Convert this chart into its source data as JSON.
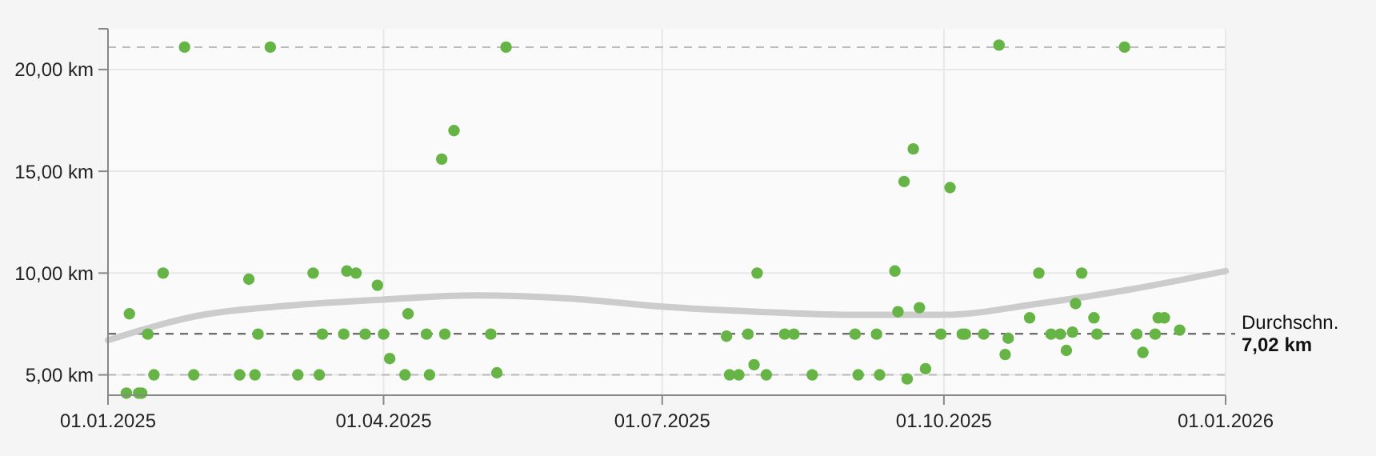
{
  "chart_data": {
    "type": "scatter",
    "ylim": [
      4,
      22
    ],
    "xlim": [
      "2025-01-01",
      "2026-01-01"
    ],
    "yticks": [
      {
        "value": 5,
        "label": "5,00 km"
      },
      {
        "value": 10,
        "label": "10,00 km"
      },
      {
        "value": 15,
        "label": "15,00 km"
      },
      {
        "value": 20,
        "label": "20,00 km"
      }
    ],
    "xticks": [
      {
        "value": "2025-01-01",
        "label": "01.01.2025"
      },
      {
        "value": "2025-04-01",
        "label": "01.04.2025"
      },
      {
        "value": "2025-07-01",
        "label": "01.07.2025"
      },
      {
        "value": "2025-10-01",
        "label": "01.10.2025"
      },
      {
        "value": "2026-01-01",
        "label": "01.01.2026"
      }
    ],
    "grid": true,
    "ref_lines": [
      {
        "axis": "y",
        "value": 7.02,
        "label": "Durchschn.\n7,02 km",
        "color": "#555555",
        "line_style": "dashed"
      },
      {
        "axis": "y",
        "value": 21.1,
        "color": "#bbbbbb",
        "line_style": "dashed"
      },
      {
        "axis": "y",
        "value": 5.0,
        "color": "#bbbbbb",
        "line_style": "dashed"
      }
    ],
    "series": [
      {
        "type": "line",
        "color": "#cccccc",
        "x": [
          "2025-01-01",
          "2025-02-01",
          "2025-03-01",
          "2025-04-01",
          "2025-05-01",
          "2025-06-01",
          "2025-07-01",
          "2025-08-01",
          "2025-09-01",
          "2025-10-01",
          "2025-11-01",
          "2025-12-01",
          "2026-01-01"
        ],
        "values": [
          6.7,
          7.95,
          8.4,
          8.7,
          8.9,
          8.75,
          8.35,
          8.1,
          7.95,
          7.95,
          8.5,
          9.2,
          10.1
        ]
      },
      {
        "marker": "circle",
        "color": "#67b446",
        "x": [
          "2025-01-07",
          "2025-01-08",
          "2025-01-11",
          "2025-01-12",
          "2025-01-14",
          "2025-01-16",
          "2025-01-19",
          "2025-01-26",
          "2025-01-29",
          "2025-02-13",
          "2025-02-16",
          "2025-02-18",
          "2025-02-19",
          "2025-02-23",
          "2025-03-04",
          "2025-03-09",
          "2025-03-11",
          "2025-03-12",
          "2025-03-19",
          "2025-03-20",
          "2025-03-23",
          "2025-03-26",
          "2025-03-30",
          "2025-04-01",
          "2025-04-03",
          "2025-04-08",
          "2025-04-09",
          "2025-04-15",
          "2025-04-16",
          "2025-04-20",
          "2025-04-21",
          "2025-04-24",
          "2025-05-06",
          "2025-05-08",
          "2025-05-11",
          "2025-07-22",
          "2025-07-23",
          "2025-07-26",
          "2025-07-29",
          "2025-07-31",
          "2025-08-01",
          "2025-08-04",
          "2025-08-10",
          "2025-08-13",
          "2025-08-19",
          "2025-09-02",
          "2025-09-03",
          "2025-09-09",
          "2025-09-10",
          "2025-09-15",
          "2025-09-16",
          "2025-09-18",
          "2025-09-19",
          "2025-09-21",
          "2025-09-23",
          "2025-09-25",
          "2025-09-30",
          "2025-10-03",
          "2025-10-07",
          "2025-10-08",
          "2025-10-14",
          "2025-10-19",
          "2025-10-21",
          "2025-10-22",
          "2025-10-29",
          "2025-11-01",
          "2025-11-05",
          "2025-11-08",
          "2025-11-10",
          "2025-11-12",
          "2025-11-13",
          "2025-11-15",
          "2025-11-19",
          "2025-11-20",
          "2025-11-29",
          "2025-12-03",
          "2025-12-05",
          "2025-12-09",
          "2025-12-10",
          "2025-12-12",
          "2025-12-17"
        ],
        "values": [
          4.1,
          8.0,
          4.1,
          4.1,
          7.0,
          5.0,
          10.0,
          21.1,
          5.0,
          5.0,
          9.7,
          5.0,
          7.0,
          21.1,
          5.0,
          10.0,
          5.0,
          7.0,
          7.0,
          10.1,
          10.0,
          7.0,
          9.4,
          7.0,
          5.8,
          5.0,
          8.0,
          7.0,
          5.0,
          15.6,
          7.0,
          17.0,
          7.0,
          5.1,
          21.1,
          6.9,
          5.0,
          5.0,
          7.0,
          5.5,
          10.0,
          5.0,
          7.0,
          7.0,
          5.0,
          7.0,
          5.0,
          7.0,
          5.0,
          10.1,
          8.1,
          14.5,
          4.8,
          16.1,
          8.3,
          5.3,
          7.0,
          14.2,
          7.0,
          7.0,
          7.0,
          21.2,
          6.0,
          6.8,
          7.8,
          10.0,
          7.0,
          7.0,
          6.2,
          7.1,
          8.5,
          10.0,
          7.8,
          7.0,
          21.1,
          7.0,
          6.1,
          7.0,
          7.8,
          7.8,
          7.2
        ]
      }
    ]
  }
}
